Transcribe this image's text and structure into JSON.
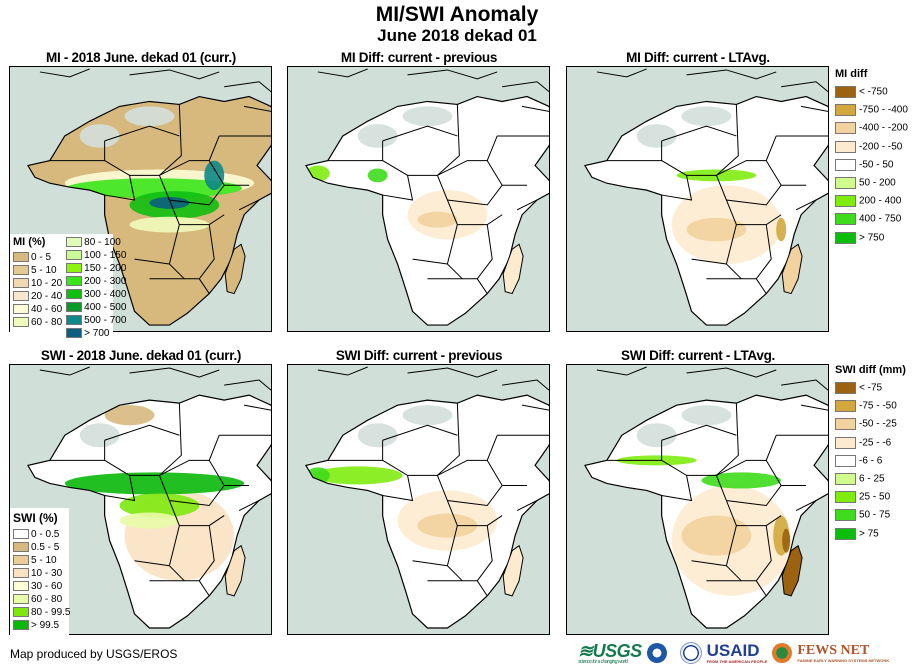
{
  "header": {
    "title": "MI/SWI Anomaly",
    "subtitle": "June 2018 dekad 01"
  },
  "panels": [
    {
      "title": "MI - 2018 June. dekad 01 (curr.)",
      "kind": "mi_current"
    },
    {
      "title": "MI Diff: current - previous",
      "kind": "mi_diff_prev"
    },
    {
      "title": "MI Diff: current - LTAvg.",
      "kind": "mi_diff_lta"
    },
    {
      "title": "SWI - 2018 June. dekad 01 (curr.)",
      "kind": "swi_current"
    },
    {
      "title": "SWI Diff: current - previous",
      "kind": "swi_diff_prev"
    },
    {
      "title": "SWI Diff: current - LTAvg.",
      "kind": "swi_diff_lta"
    }
  ],
  "legends": {
    "mi_pct": {
      "title": "MI (%)",
      "items": [
        {
          "label": "0 - 5",
          "color": "#d7b97e"
        },
        {
          "label": "5 - 10",
          "color": "#e5c992"
        },
        {
          "label": "10 - 20",
          "color": "#f0d8b0"
        },
        {
          "label": "20 - 40",
          "color": "#f7e8cd"
        },
        {
          "label": "40 - 60",
          "color": "#fdfcd6"
        },
        {
          "label": "60 - 80",
          "color": "#f0fbbd"
        },
        {
          "label": "80 - 100",
          "color": "#e0fbb8"
        },
        {
          "label": "100 - 150",
          "color": "#c8fa96"
        },
        {
          "label": "150 - 200",
          "color": "#8ef40e"
        },
        {
          "label": "200 - 300",
          "color": "#3ae61a"
        },
        {
          "label": "300 - 400",
          "color": "#10bf10"
        },
        {
          "label": "400 - 500",
          "color": "#0a9a2a"
        },
        {
          "label": "500 - 700",
          "color": "#0e8888"
        },
        {
          "label": "> 700",
          "color": "#0b5e80"
        }
      ]
    },
    "swi_pct": {
      "title": "SWI (%)",
      "items": [
        {
          "label": "0 - 0.5",
          "color": "#ffffff"
        },
        {
          "label": "0.5 - 5",
          "color": "#d7b97e"
        },
        {
          "label": "5 - 10",
          "color": "#eccd98"
        },
        {
          "label": "10 - 30",
          "color": "#f9e2c2"
        },
        {
          "label": "30 - 60",
          "color": "#fdfdd6"
        },
        {
          "label": "60 - 80",
          "color": "#e8fba8"
        },
        {
          "label": "80 - 99.5",
          "color": "#7ee80e"
        },
        {
          "label": "> 99.5",
          "color": "#0ab80a"
        }
      ]
    },
    "mi_diff": {
      "title": "MI diff",
      "items": [
        {
          "label": "< -750",
          "color": "#9c6210"
        },
        {
          "label": "-750 - -400",
          "color": "#d2a83e"
        },
        {
          "label": "-400 - -200",
          "color": "#f2d29e"
        },
        {
          "label": "-200 - -50",
          "color": "#fdebd0"
        },
        {
          "label": "-50 - 50",
          "color": "#ffffff"
        },
        {
          "label": "50 - 200",
          "color": "#d2fc8e"
        },
        {
          "label": "200 - 400",
          "color": "#80ec0e"
        },
        {
          "label": "400 - 750",
          "color": "#3edc1c"
        },
        {
          "label": "> 750",
          "color": "#0cbe0c"
        }
      ]
    },
    "swi_diff": {
      "title": "SWI diff (mm)",
      "items": [
        {
          "label": "< -75",
          "color": "#9c6210"
        },
        {
          "label": "-75 - -50",
          "color": "#d2a83e"
        },
        {
          "label": "-50 - -25",
          "color": "#f2d29e"
        },
        {
          "label": "-25 - -6",
          "color": "#fdebd0"
        },
        {
          "label": "-6 - 6",
          "color": "#ffffff"
        },
        {
          "label": "6 - 25",
          "color": "#d2fc8e"
        },
        {
          "label": "25 - 50",
          "color": "#80ec0e"
        },
        {
          "label": "50 - 75",
          "color": "#3edc1c"
        },
        {
          "label": "> 75",
          "color": "#0cbe0c"
        }
      ]
    }
  },
  "colors": {
    "ocean": "#d0dfd8",
    "desert_nodata": "#d3dfdb",
    "border": "#000000"
  },
  "footer": {
    "credit": "Map produced by USGS/EROS",
    "logos": [
      {
        "name": "USGS",
        "tagline": "science for a changing world"
      },
      {
        "name": "NOAA"
      },
      {
        "name": "USAID seal"
      },
      {
        "name": "USAID",
        "tagline": "FROM THE AMERICAN PEOPLE"
      },
      {
        "name": "FEWS NET",
        "tagline": "FAMINE EARLY WARNING SYSTEMS NETWORK"
      }
    ]
  }
}
